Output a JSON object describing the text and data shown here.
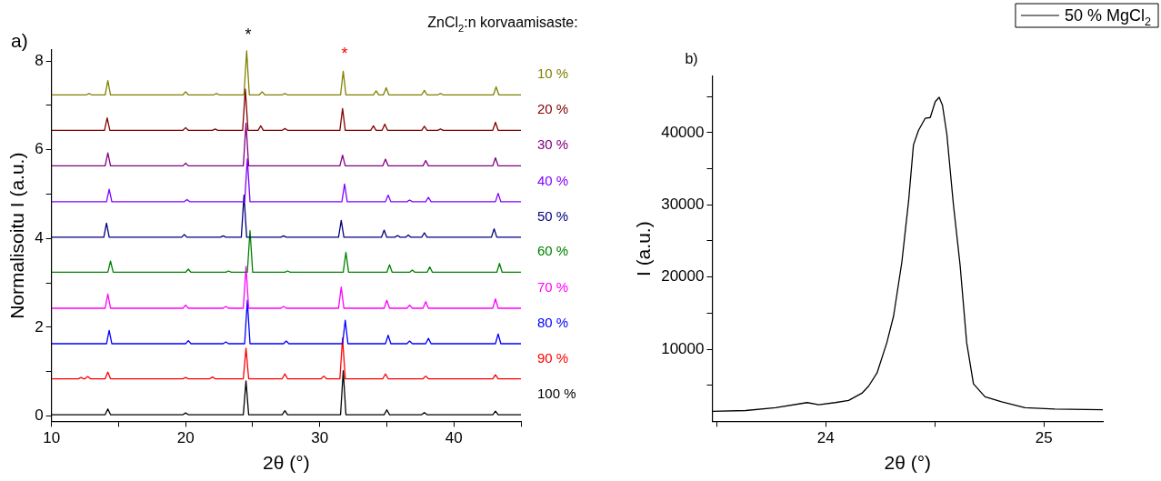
{
  "chart_data": [
    {
      "type": "line",
      "legend_title": "ZnCl$_{2}$:n korvaamisaste:",
      "xlabel": "2θ (°)",
      "ylabel": "Normalisoitu I (a.u.)",
      "xlim": [
        10,
        45
      ],
      "ylim": [
        -0.12,
        8.25
      ],
      "xticks": [
        10,
        {
          "value": 15,
          "label": null
        },
        20,
        {
          "value": 25,
          "label": null
        },
        30,
        {
          "value": 35,
          "label": null
        },
        40,
        {
          "value": 45,
          "label": null
        }
      ],
      "yticks": [
        0,
        {
          "value": 1,
          "label": null
        },
        2,
        {
          "value": 3,
          "label": null
        },
        4,
        {
          "value": 5,
          "label": null
        },
        6,
        {
          "value": 7,
          "label": null
        },
        8
      ],
      "grid": false,
      "legend": false,
      "marker": "none",
      "line_style": "solid",
      "annotations": [
        "a)",
        "*",
        "*"
      ],
      "series": [
        {
          "name": "10 %",
          "color": "#808000",
          "x": [
            10,
            12.6,
            12.8,
            13.0,
            14.0,
            14.2,
            14.4,
            19.8,
            20.0,
            20.2,
            22.1,
            22.3,
            22.5,
            24.35,
            24.55,
            24.75,
            25.5,
            25.7,
            25.9,
            27.2,
            27.4,
            27.6,
            31.55,
            31.75,
            31.95,
            34.0,
            34.2,
            34.4,
            34.75,
            34.95,
            35.15,
            37.6,
            37.8,
            38.0,
            38.8,
            39.0,
            39.2,
            42.95,
            43.15,
            43.35,
            45
          ],
          "values": [
            7.24,
            7.24,
            7.27,
            7.24,
            7.24,
            7.56,
            7.24,
            7.24,
            7.31,
            7.24,
            7.24,
            7.27,
            7.24,
            7.24,
            8.23,
            7.24,
            7.24,
            7.31,
            7.24,
            7.24,
            7.27,
            7.24,
            7.24,
            7.77,
            7.24,
            7.24,
            7.33,
            7.24,
            7.24,
            7.4,
            7.24,
            7.24,
            7.34,
            7.24,
            7.24,
            7.27,
            7.24,
            7.24,
            7.42,
            7.24,
            7.24
          ]
        },
        {
          "name": "20 %",
          "color": "#800000",
          "x": [
            10,
            13.95,
            14.15,
            14.35,
            19.8,
            20.0,
            20.2,
            22.0,
            22.2,
            22.4,
            24.25,
            24.45,
            24.65,
            25.4,
            25.6,
            25.8,
            27.2,
            27.4,
            27.6,
            31.5,
            31.7,
            31.9,
            33.8,
            34.0,
            34.2,
            34.65,
            34.85,
            35.05,
            37.6,
            37.8,
            38.0,
            38.8,
            39.0,
            39.2,
            42.9,
            43.1,
            43.3,
            45
          ],
          "values": [
            6.44,
            6.44,
            6.72,
            6.44,
            6.44,
            6.5,
            6.44,
            6.44,
            6.47,
            6.44,
            6.44,
            7.37,
            6.44,
            6.44,
            6.54,
            6.44,
            6.44,
            6.48,
            6.44,
            6.44,
            6.93,
            6.44,
            6.44,
            6.54,
            6.44,
            6.44,
            6.58,
            6.44,
            6.44,
            6.53,
            6.44,
            6.44,
            6.47,
            6.44,
            6.44,
            6.62,
            6.44,
            6.44
          ]
        },
        {
          "name": "30 %",
          "color": "#800080",
          "x": [
            10,
            14.0,
            14.2,
            14.4,
            19.8,
            20.0,
            20.2,
            24.3,
            24.5,
            24.7,
            31.5,
            31.7,
            31.9,
            34.7,
            34.9,
            35.1,
            37.7,
            37.9,
            38.1,
            42.9,
            43.1,
            43.3,
            45
          ],
          "values": [
            5.64,
            5.64,
            5.93,
            5.64,
            5.64,
            5.7,
            5.64,
            5.64,
            6.6,
            5.64,
            5.64,
            5.88,
            5.64,
            5.64,
            5.79,
            5.64,
            5.64,
            5.76,
            5.64,
            5.64,
            5.82,
            5.64,
            5.64
          ]
        },
        {
          "name": "40 %",
          "color": "#8000ff",
          "x": [
            10,
            14.1,
            14.3,
            14.5,
            19.9,
            20.1,
            20.3,
            24.4,
            24.6,
            24.8,
            31.65,
            31.85,
            32.05,
            34.9,
            35.1,
            35.3,
            36.5,
            36.7,
            36.9,
            37.9,
            38.1,
            38.3,
            43.1,
            43.3,
            43.5,
            45
          ],
          "values": [
            4.83,
            4.83,
            5.11,
            4.83,
            4.83,
            4.88,
            4.83,
            4.83,
            5.8,
            4.83,
            4.83,
            5.23,
            4.83,
            4.83,
            4.98,
            4.83,
            4.83,
            4.87,
            4.83,
            4.83,
            4.93,
            4.83,
            4.83,
            5.02,
            4.83,
            4.83
          ]
        },
        {
          "name": "50 %",
          "color": "#000080",
          "x": [
            10,
            13.9,
            14.1,
            14.3,
            19.7,
            19.9,
            20.1,
            22.6,
            22.8,
            23.0,
            24.15,
            24.35,
            24.55,
            27.1,
            27.3,
            27.5,
            31.4,
            31.6,
            31.8,
            34.6,
            34.8,
            35.0,
            35.6,
            35.8,
            36.0,
            36.4,
            36.6,
            36.8,
            37.6,
            37.8,
            38.0,
            42.8,
            43.0,
            43.2,
            45
          ],
          "values": [
            4.03,
            4.03,
            4.35,
            4.03,
            4.03,
            4.09,
            4.03,
            4.03,
            4.06,
            4.03,
            4.03,
            4.98,
            4.03,
            4.03,
            4.06,
            4.03,
            4.03,
            4.41,
            4.03,
            4.03,
            4.19,
            4.03,
            4.03,
            4.07,
            4.03,
            4.03,
            4.08,
            4.03,
            4.03,
            4.13,
            4.03,
            4.03,
            4.22,
            4.03,
            4.03
          ]
        },
        {
          "name": "60 %",
          "color": "#008000",
          "x": [
            10,
            14.2,
            14.4,
            14.6,
            20.0,
            20.2,
            20.4,
            23.0,
            23.2,
            23.4,
            24.6,
            24.8,
            25.0,
            27.4,
            27.6,
            27.8,
            31.75,
            31.95,
            32.15,
            35.0,
            35.2,
            35.4,
            36.7,
            36.9,
            37.1,
            38.0,
            38.2,
            38.4,
            43.2,
            43.4,
            43.6,
            45
          ],
          "values": [
            3.24,
            3.24,
            3.49,
            3.24,
            3.24,
            3.31,
            3.24,
            3.24,
            3.27,
            3.24,
            3.24,
            4.18,
            3.24,
            3.24,
            3.27,
            3.24,
            3.24,
            3.69,
            3.24,
            3.24,
            3.41,
            3.24,
            3.24,
            3.29,
            3.24,
            3.24,
            3.36,
            3.24,
            3.24,
            3.44,
            3.24,
            3.24
          ]
        },
        {
          "name": "70 %",
          "color": "#ff00ff",
          "x": [
            10,
            14.0,
            14.2,
            14.4,
            19.8,
            20.0,
            20.2,
            22.8,
            23.0,
            23.2,
            24.3,
            24.5,
            24.7,
            27.1,
            27.3,
            27.5,
            31.4,
            31.6,
            31.8,
            34.8,
            35.0,
            35.2,
            36.5,
            36.7,
            36.9,
            37.7,
            37.9,
            38.1,
            42.9,
            43.1,
            43.3,
            45
          ],
          "values": [
            2.43,
            2.43,
            2.75,
            2.43,
            2.43,
            2.5,
            2.43,
            2.43,
            2.47,
            2.43,
            2.43,
            3.37,
            2.43,
            2.43,
            2.47,
            2.43,
            2.43,
            2.91,
            2.43,
            2.43,
            2.61,
            2.43,
            2.43,
            2.5,
            2.43,
            2.43,
            2.58,
            2.43,
            2.43,
            2.64,
            2.43,
            2.43
          ]
        },
        {
          "name": "80 %",
          "color": "#0000ff",
          "x": [
            10,
            14.1,
            14.3,
            14.5,
            20.0,
            20.2,
            20.4,
            22.8,
            23.0,
            23.2,
            24.4,
            24.6,
            24.8,
            27.3,
            27.5,
            27.7,
            31.7,
            31.9,
            32.1,
            34.9,
            35.1,
            35.3,
            36.5,
            36.7,
            36.9,
            37.9,
            38.1,
            38.3,
            43.1,
            43.3,
            43.5,
            45
          ],
          "values": [
            1.63,
            1.63,
            1.93,
            1.63,
            1.63,
            1.7,
            1.63,
            1.63,
            1.67,
            1.63,
            1.63,
            2.61,
            1.63,
            1.63,
            1.69,
            1.63,
            1.63,
            2.16,
            1.63,
            1.63,
            1.82,
            1.63,
            1.63,
            1.69,
            1.63,
            1.63,
            1.75,
            1.63,
            1.63,
            1.85,
            1.63,
            1.63
          ]
        },
        {
          "name": "90 %",
          "color": "#ff0000",
          "x": [
            10,
            12.0,
            12.2,
            12.4,
            12.5,
            12.7,
            12.9,
            14.0,
            14.2,
            14.4,
            19.8,
            20.0,
            20.2,
            21.8,
            22.0,
            22.2,
            24.3,
            24.5,
            24.7,
            27.2,
            27.4,
            27.6,
            30.1,
            30.3,
            30.5,
            31.5,
            31.7,
            31.9,
            34.7,
            34.9,
            35.1,
            37.7,
            37.9,
            38.1,
            42.9,
            43.1,
            43.3,
            45
          ],
          "values": [
            0.84,
            0.84,
            0.87,
            0.84,
            0.84,
            0.89,
            0.84,
            0.84,
            0.99,
            0.84,
            0.84,
            0.87,
            0.84,
            0.84,
            0.88,
            0.84,
            0.84,
            1.53,
            0.84,
            0.84,
            0.95,
            0.84,
            0.84,
            0.9,
            0.84,
            0.84,
            1.76,
            0.84,
            0.84,
            0.95,
            0.84,
            0.84,
            0.9,
            0.84,
            0.84,
            0.93,
            0.84,
            0.84
          ]
        },
        {
          "name": "100 %",
          "color": "#000000",
          "x": [
            10,
            14.0,
            14.2,
            14.4,
            19.8,
            20.0,
            20.2,
            24.3,
            24.5,
            24.7,
            27.2,
            27.4,
            27.6,
            31.55,
            31.75,
            31.95,
            34.8,
            35.0,
            35.2,
            37.6,
            37.8,
            38.0,
            42.9,
            43.1,
            43.3,
            45
          ],
          "values": [
            0.03,
            0.03,
            0.16,
            0.03,
            0.03,
            0.07,
            0.03,
            0.03,
            0.79,
            0.03,
            0.03,
            0.12,
            0.03,
            0.03,
            1.02,
            0.03,
            0.03,
            0.14,
            0.03,
            0.03,
            0.08,
            0.03,
            0.03,
            0.11,
            0.03,
            0.03
          ]
        }
      ]
    },
    {
      "type": "line",
      "xlabel": "2θ (°)",
      "ylabel": "I (a.u.)",
      "xlim": [
        23.48,
        25.27
      ],
      "ylim": [
        0,
        47800
      ],
      "xticks": [
        {
          "value": 23.5,
          "label": null
        },
        24,
        {
          "value": 24.5,
          "label": null
        },
        25
      ],
      "yticks": [
        {
          "value": 5000,
          "label": null
        },
        10000,
        {
          "value": 15000,
          "label": null
        },
        20000,
        {
          "value": 25000,
          "label": null
        },
        30000,
        {
          "value": 35000,
          "label": null
        },
        40000,
        {
          "value": 45000,
          "label": null
        }
      ],
      "grid": false,
      "legend": "top right",
      "marker": "none",
      "line_style": "solid",
      "annotations": [
        "b)"
      ],
      "series": [
        {
          "name": "50 % MgCl$_{2}$",
          "color": "#000000",
          "x": [
            23.48,
            23.633,
            23.77,
            23.915,
            23.968,
            24.044,
            24.105,
            24.166,
            24.197,
            24.235,
            24.28,
            24.311,
            24.349,
            24.38,
            24.402,
            24.425,
            24.456,
            24.479,
            24.502,
            24.52,
            24.535,
            24.555,
            24.585,
            24.616,
            24.646,
            24.677,
            24.73,
            24.806,
            24.913,
            25.05,
            25.27
          ],
          "values": [
            1400,
            1500,
            1900,
            2600,
            2300,
            2600,
            2900,
            3900,
            4900,
            6700,
            10900,
            14600,
            22100,
            30600,
            38300,
            40300,
            42000,
            42100,
            44300,
            44900,
            43800,
            39800,
            30100,
            21600,
            10900,
            5200,
            3400,
            2700,
            1900,
            1700,
            1600
          ]
        }
      ]
    }
  ]
}
